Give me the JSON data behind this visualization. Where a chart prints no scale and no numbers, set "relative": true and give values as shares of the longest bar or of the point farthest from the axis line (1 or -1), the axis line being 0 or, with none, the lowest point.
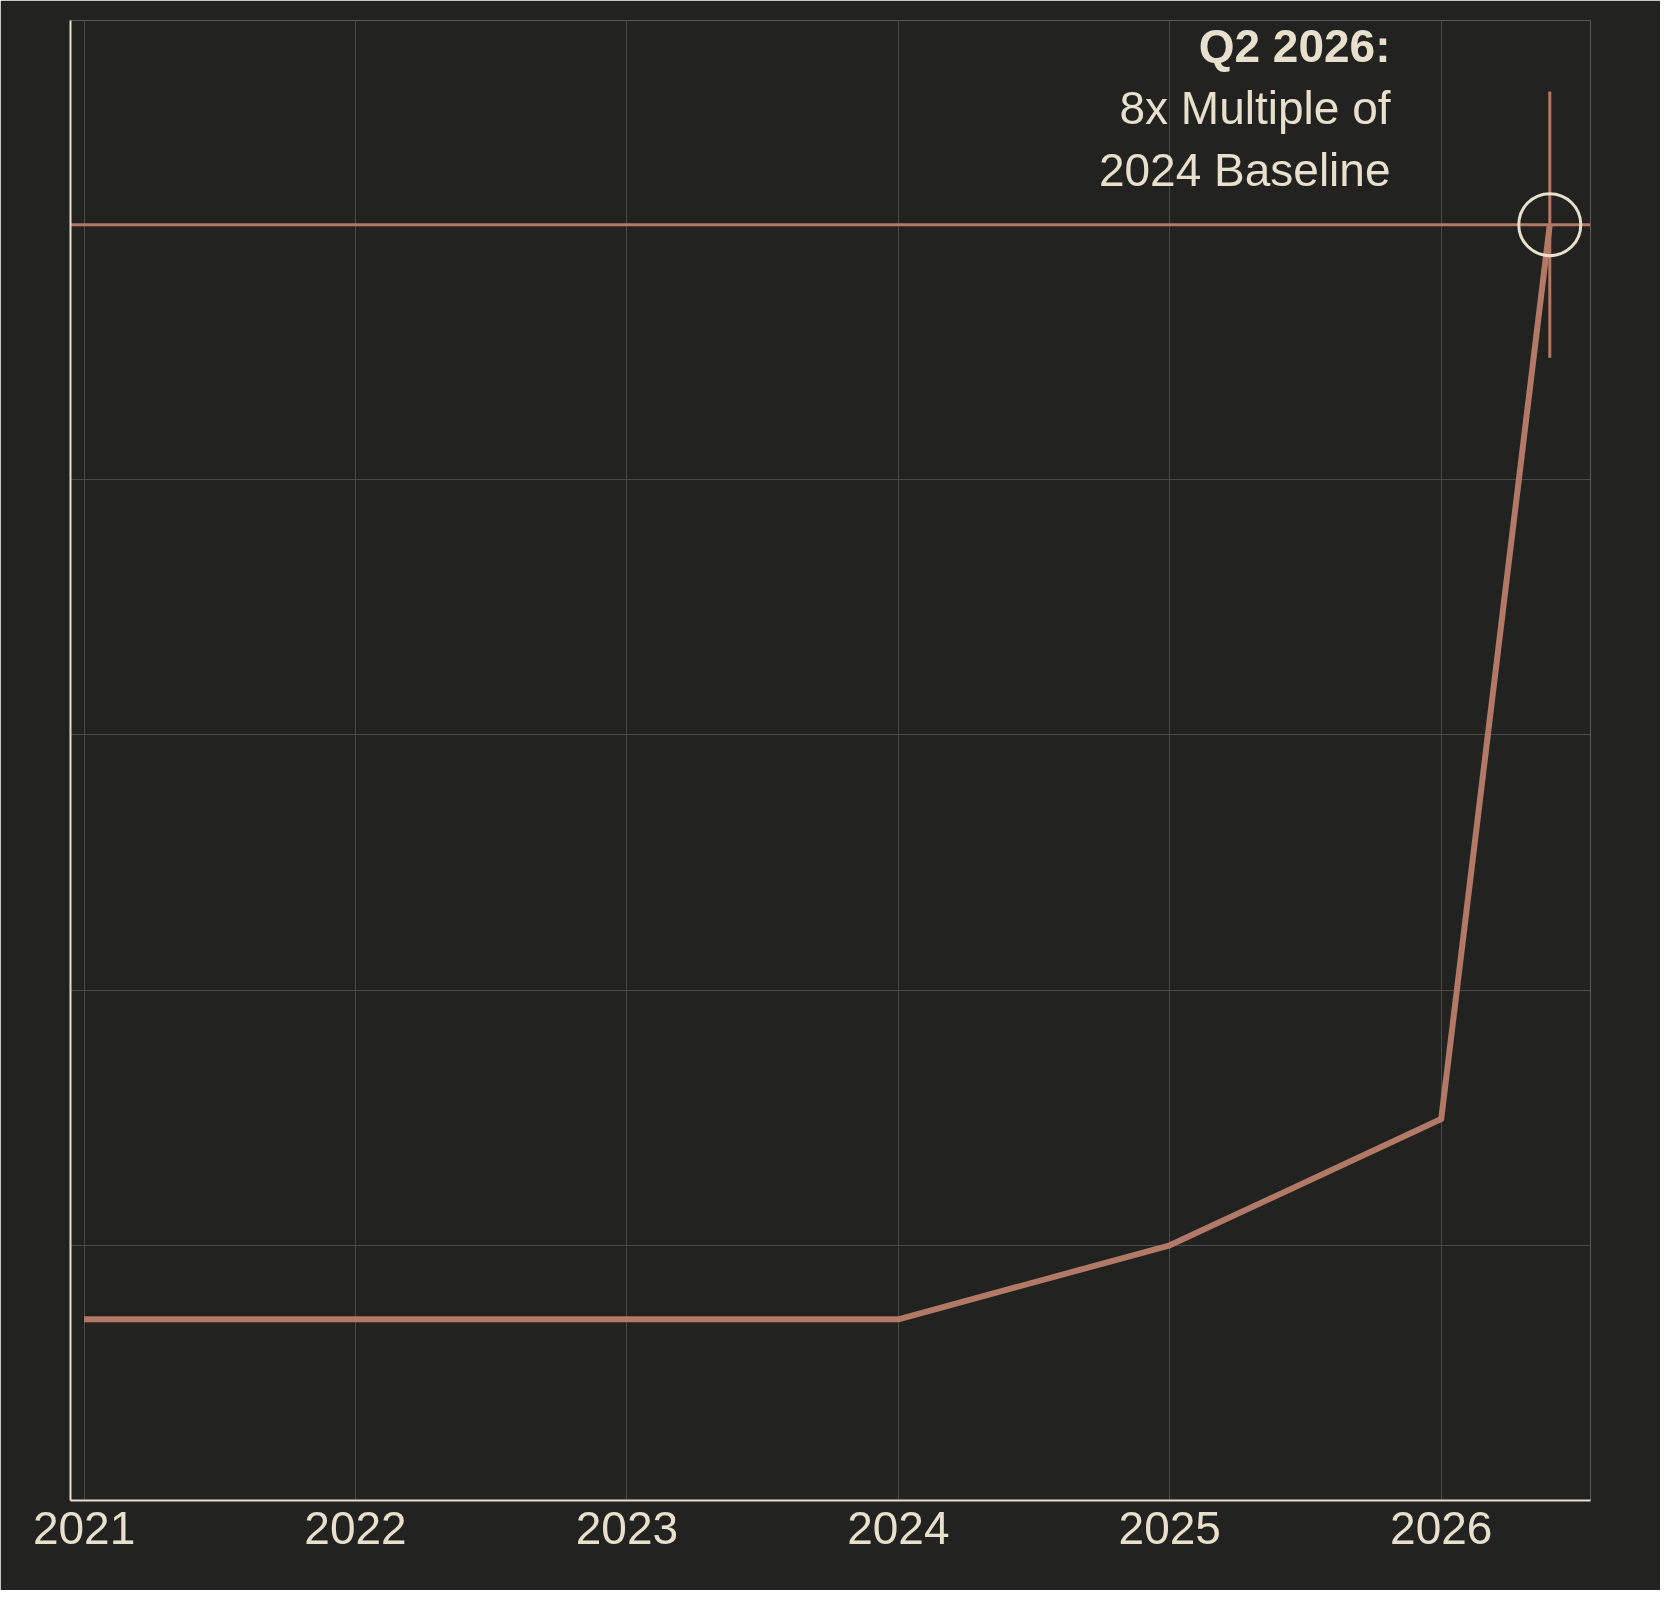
{
  "chart_data": {
    "type": "line",
    "relative": true,
    "x": [
      2021,
      2022,
      2023,
      2024,
      2025,
      2026,
      2026.4
    ],
    "xlim": [
      2020.95,
      2026.55
    ],
    "xticks": [
      2021,
      2022,
      2023,
      2024,
      2025,
      2026
    ],
    "series": [
      {
        "color": "#b27a66",
        "values": [
          0.142,
          0.142,
          0.142,
          0.142,
          0.2,
          0.299,
          1
        ]
      }
    ],
    "grid": true,
    "marker": "none",
    "line_style": "solid",
    "ref_lines": [
      {
        "axis": "x",
        "value": 2026.4,
        "color": "#b27a66"
      },
      {
        "axis": "y",
        "value": 1,
        "color": "#b27a66"
      }
    ],
    "annotations": [
      "Q2 2026:\n8x Multiple of\n2024 Baseline"
    ]
  }
}
